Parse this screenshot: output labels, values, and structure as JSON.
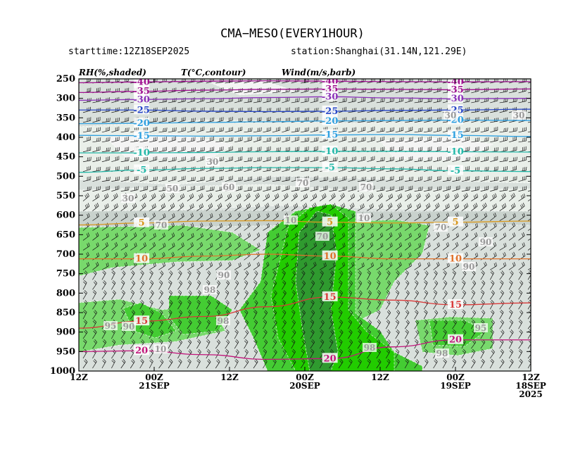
{
  "header": {
    "title": "CMA−MESO(EVERY1HOUR)",
    "starttime": "starttime:12Z18SEP2025",
    "station": "station:Shanghai(31.14N,121.29E)"
  },
  "panel_labels": {
    "rh": "RH(%,shaded)",
    "temp": "T(°C,contour)",
    "wind": "Wind(m/s,barb)"
  },
  "colors": {
    "rh_30": "#f4f4f4",
    "rh_50": "#e9efe9",
    "rh_70": "#d9e0dc",
    "rh_80": "#c9d2cd",
    "rh_90": "#78d96c",
    "rh_95": "#44cc33",
    "rh_98": "#22cc00",
    "rh_sat": "#2f9a2f",
    "t_-40": "#a01090",
    "t_-35": "#a01090",
    "t_-30": "#8a30b8",
    "t_-25": "#2747c7",
    "t_-20": "#2fa0e0",
    "t_-15": "#2fa0e0",
    "t_-10": "#22b8a8",
    "t_-5": "#22b8a8",
    "t_5": "#d8981e",
    "t_10": "#e0722a",
    "t_15": "#d83a3a",
    "t_20": "#c0157a"
  },
  "chart_data": {
    "type": "heatmap",
    "title": "CMA−MESO(EVERY1HOUR)",
    "xlabel": "",
    "ylabel": "",
    "x_direction": "reversed (time increases to the left)",
    "x_ticks": [
      {
        "line1": "12Z",
        "line2": "",
        "line3": ""
      },
      {
        "line1": "00Z",
        "line2": "21SEP",
        "line3": ""
      },
      {
        "line1": "12Z",
        "line2": "",
        "line3": ""
      },
      {
        "line1": "00Z",
        "line2": "20SEP",
        "line3": ""
      },
      {
        "line1": "12Z",
        "line2": "",
        "line3": ""
      },
      {
        "line1": "00Z",
        "line2": "19SEP",
        "line3": ""
      },
      {
        "line1": "12Z",
        "line2": "18SEP",
        "line3": "2025"
      }
    ],
    "x_hours_after_start": [
      72,
      60,
      48,
      36,
      24,
      12,
      0
    ],
    "y_ticks": [
      250,
      300,
      350,
      400,
      450,
      500,
      550,
      600,
      650,
      700,
      750,
      800,
      850,
      900,
      950,
      1000
    ],
    "ylim": [
      1000,
      250
    ],
    "grid": false,
    "legend": "none",
    "temperature_contours": [
      {
        "value": -40,
        "label": "-40",
        "levels_hpa": [
          260,
          258,
          256,
          255,
          256,
          257,
          258,
          257
        ]
      },
      {
        "value": -35,
        "label": "-35",
        "levels_hpa": [
          285,
          282,
          279,
          277,
          276,
          277,
          278,
          276
        ]
      },
      {
        "value": -30,
        "label": "-30",
        "levels_hpa": [
          305,
          303,
          301,
          298,
          296,
          299,
          301,
          300
        ]
      },
      {
        "value": -25,
        "label": "-25",
        "levels_hpa": [
          330,
          330,
          333,
          334,
          333,
          331,
          330,
          328
        ]
      },
      {
        "value": -20,
        "label": "-20",
        "levels_hpa": [
          365,
          364,
          362,
          360,
          358,
          357,
          356,
          357
        ]
      },
      {
        "value": -15,
        "label": "-15",
        "levels_hpa": [
          395,
          396,
          397,
          396,
          394,
          393,
          395,
          398
        ]
      },
      {
        "value": -10,
        "label": "-10",
        "levels_hpa": [
          440,
          440,
          439,
          437,
          436,
          436,
          437,
          438
        ]
      },
      {
        "value": -5,
        "label": "-5",
        "levels_hpa": [
          490,
          484,
          480,
          478,
          478,
          481,
          486,
          488
        ]
      },
      {
        "value": 5,
        "label": "5",
        "levels_hpa": [
          625,
          620,
          615,
          614,
          618,
          620,
          618,
          615
        ]
      },
      {
        "value": 10,
        "label": "10",
        "levels_hpa": [
          712,
          712,
          705,
          700,
          705,
          712,
          712,
          712
        ]
      },
      {
        "value": 15,
        "label": "15",
        "levels_hpa": [
          890,
          872,
          860,
          835,
          810,
          818,
          830,
          825
        ]
      },
      {
        "value": 20,
        "label": "20",
        "levels_hpa": [
          950,
          948,
          958,
          970,
          968,
          938,
          920,
          920
        ]
      }
    ],
    "rh_labels_shown": [
      "30",
      "30",
      "30",
      "50",
      "60",
      "70",
      "70",
      "70",
      "70",
      "70",
      "90",
      "90",
      "90",
      "90",
      "95",
      "98",
      "98",
      "98",
      "98",
      "95",
      "10",
      "10",
      "10",
      "30"
    ],
    "wind_barbs": "full pressure-time grid, speeds about 5–30 m/s"
  }
}
